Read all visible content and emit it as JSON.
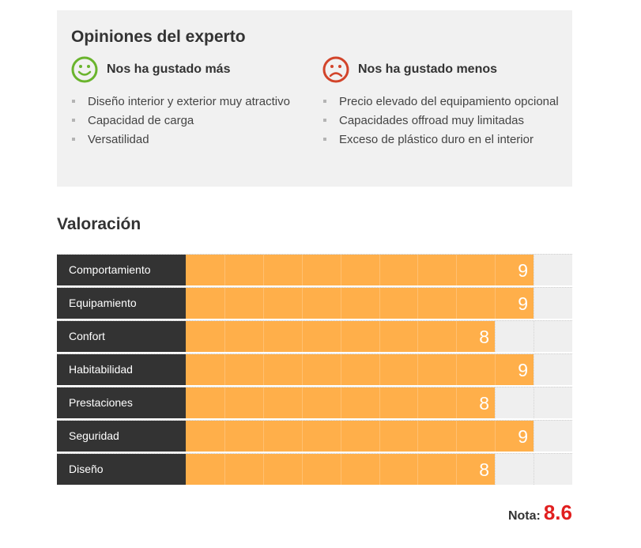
{
  "opinions": {
    "title": "Opiniones del experto",
    "pros": {
      "title": "Nos ha gustado más",
      "icon": "smiley-happy-icon",
      "color": "#6ab42d",
      "items": [
        "Diseño interior y exterior muy atractivo",
        "Capacidad de carga",
        "Versatilidad"
      ]
    },
    "cons": {
      "title": "Nos ha gustado menos",
      "icon": "smiley-sad-icon",
      "color": "#d2442a",
      "items": [
        "Precio elevado del equipamiento opcional",
        "Capacidades offroad muy limitadas",
        "Exceso de plástico duro en el interior"
      ]
    }
  },
  "rating": {
    "title": "Valoración",
    "max": 10,
    "bar_color": "#ffaf4a",
    "rows": [
      {
        "label": "Comportamiento",
        "value": 9
      },
      {
        "label": "Equipamiento",
        "value": 9
      },
      {
        "label": "Confort",
        "value": 8
      },
      {
        "label": "Habitabilidad",
        "value": 9
      },
      {
        "label": "Prestaciones",
        "value": 8
      },
      {
        "label": "Seguridad",
        "value": 9
      },
      {
        "label": "Diseño",
        "value": 8
      }
    ],
    "score_label": "Nota:",
    "score_value": "8.6",
    "score_color": "#e11f1f"
  }
}
